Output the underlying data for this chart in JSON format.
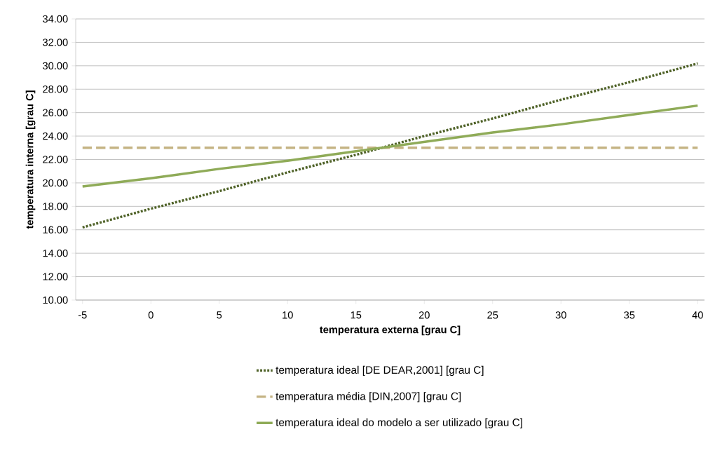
{
  "chart_data": {
    "type": "line",
    "xlabel": "temperatura externa [grau C]",
    "ylabel": "temperatura interna [grau C]",
    "x": [
      -5,
      0,
      5,
      10,
      15,
      20,
      25,
      30,
      35,
      40
    ],
    "series": [
      {
        "name": "temperatura ideal [DE DEAR,2001] [grau C]",
        "color": "#4f6228",
        "line_style": "dotted",
        "values": [
          16.2,
          17.8,
          19.3,
          20.9,
          22.4,
          24.0,
          25.5,
          27.1,
          28.6,
          30.2
        ]
      },
      {
        "name": "temperatura média [DIN,2007] [grau C]",
        "color": "#c4b383",
        "line_style": "dashed",
        "values": [
          23,
          23,
          23,
          23,
          23,
          23,
          23,
          23,
          23,
          23
        ]
      },
      {
        "name": "temperatura ideal do modelo a ser utilizado [grau C]",
        "color": "#8fab58",
        "line_style": "solid",
        "values": [
          19.7,
          20.4,
          21.2,
          21.9,
          22.7,
          23.5,
          24.3,
          25.0,
          25.8,
          26.6
        ]
      }
    ],
    "xlim": [
      -5.5,
      40.5
    ],
    "ylim": [
      10,
      34
    ],
    "xticks": [
      -5,
      0,
      5,
      10,
      15,
      20,
      25,
      30,
      35,
      40
    ],
    "yticks": [
      {
        "value": 10,
        "label": "10.00"
      },
      {
        "value": 12,
        "label": "12.00"
      },
      {
        "value": 14,
        "label": "14.00"
      },
      {
        "value": 16,
        "label": "16.00"
      },
      {
        "value": 18,
        "label": "18.00"
      },
      {
        "value": 20,
        "label": "20.00"
      },
      {
        "value": 22,
        "label": "22.00"
      },
      {
        "value": 24,
        "label": "24.00"
      },
      {
        "value": 26,
        "label": "26.00"
      },
      {
        "value": 28,
        "label": "28.00"
      },
      {
        "value": 30,
        "label": "30.00"
      },
      {
        "value": 32,
        "label": "32.00"
      },
      {
        "value": 34,
        "label": "34.00"
      }
    ],
    "grid": "y",
    "legend": "bottom",
    "marker": "none"
  }
}
